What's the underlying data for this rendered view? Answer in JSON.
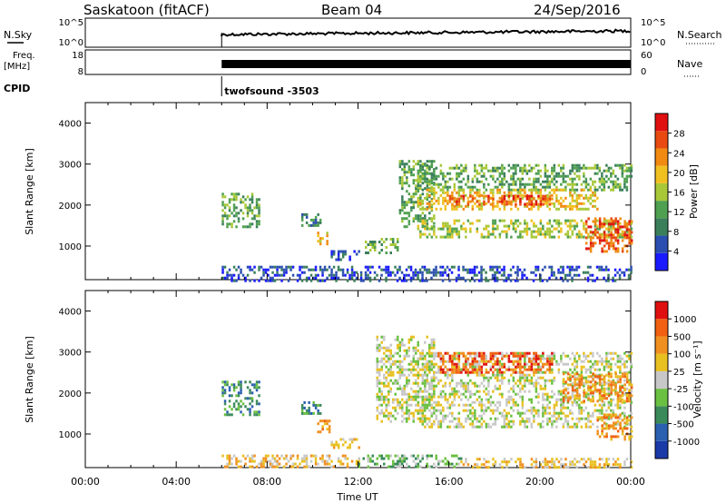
{
  "header": {
    "station": "Saskatoon (fitACF)",
    "beam": "Beam 04",
    "date": "24/Sep/2016"
  },
  "top_panels": {
    "nsky_label": "N.Sky",
    "nsky_ticks": [
      "10^5",
      "10^0"
    ],
    "nsearch_label": "N.Search",
    "nsearch_ticks": [
      "10^5",
      "10^0"
    ],
    "freq_label_1": "Freq.",
    "freq_label_2": "[MHz]",
    "freq_ticks": [
      "18",
      "8"
    ],
    "nave_label": "Nave",
    "nave_ticks": [
      "60",
      "0"
    ],
    "cpid_label": "CPID",
    "cpid_value": "twofsound -3503",
    "data_start_hour": 6
  },
  "colors": {
    "power_scale": [
      "#1a1aff",
      "#2b4fb0",
      "#3a7f5a",
      "#4fa050",
      "#a8c838",
      "#f0c020",
      "#f08a10",
      "#e84a10",
      "#e01010"
    ],
    "velocity_scale": [
      "#1a3aa8",
      "#2b5fb0",
      "#3a8a5a",
      "#6ac040",
      "#c8c8c8",
      "#e8c020",
      "#f09020",
      "#f06010",
      "#e01010"
    ]
  },
  "chart_data": [
    {
      "type": "heatmap",
      "name": "power",
      "ylabel": "Slant Range [km]",
      "colorbar_label": "Power [dB]",
      "colorbar_ticks": [
        "28",
        "24",
        "20",
        "16",
        "12",
        "8",
        "4"
      ],
      "ylim": [
        180,
        4500
      ],
      "yticks": [
        "4000",
        "3000",
        "2000",
        "1000"
      ],
      "xlim_hours": [
        0,
        24
      ],
      "regions": [
        {
          "t0": 6.0,
          "t1": 7.6,
          "r0": 1500,
          "r1": 2300,
          "level": 3
        },
        {
          "t0": 9.5,
          "t1": 10.3,
          "r0": 1500,
          "r1": 1800,
          "level": 2
        },
        {
          "t0": 10.2,
          "t1": 10.7,
          "r0": 1050,
          "r1": 1350,
          "level": 5
        },
        {
          "t0": 10.8,
          "t1": 12.0,
          "r0": 700,
          "r1": 900,
          "level": 1
        },
        {
          "t0": 12.3,
          "t1": 13.7,
          "r0": 850,
          "r1": 1200,
          "level": 3
        },
        {
          "t0": 13.8,
          "t1": 15.3,
          "r0": 1500,
          "r1": 3100,
          "level": 3
        },
        {
          "t0": 14.6,
          "t1": 24.0,
          "r0": 2400,
          "r1": 3000,
          "level": 3
        },
        {
          "t0": 14.6,
          "t1": 22.5,
          "r0": 1900,
          "r1": 2400,
          "level": 5
        },
        {
          "t0": 16.0,
          "t1": 20.5,
          "r0": 2000,
          "r1": 2250,
          "level": 7
        },
        {
          "t0": 14.6,
          "t1": 24.0,
          "r0": 1200,
          "r1": 1650,
          "level": 4
        },
        {
          "t0": 22.0,
          "t1": 24.0,
          "r0": 900,
          "r1": 1700,
          "level": 7
        },
        {
          "t0": 6.0,
          "t1": 24.0,
          "r0": 180,
          "r1": 520,
          "level": 1
        }
      ]
    },
    {
      "type": "heatmap",
      "name": "velocity",
      "ylabel": "Slant Range [km]",
      "colorbar_label": "Velocity [m s⁻¹]",
      "colorbar_ticks": [
        "1000",
        "500",
        "100",
        "25",
        "-25",
        "-100",
        "-500",
        "-1000"
      ],
      "ylim": [
        180,
        4500
      ],
      "yticks": [
        "4000",
        "3000",
        "2000",
        "1000"
      ],
      "xlim_hours": [
        0,
        24
      ],
      "xlabel": "Time UT",
      "xticks": [
        "00:00",
        "04:00",
        "08:00",
        "12:00",
        "16:00",
        "20:00",
        "00:00"
      ],
      "regions": [
        {
          "t0": 6.0,
          "t1": 7.6,
          "r0": 1500,
          "r1": 2300,
          "level": 2
        },
        {
          "t0": 9.5,
          "t1": 10.3,
          "r0": 1500,
          "r1": 1800,
          "level": 2
        },
        {
          "t0": 10.2,
          "t1": 10.7,
          "r0": 1050,
          "r1": 1350,
          "level": 6
        },
        {
          "t0": 10.8,
          "t1": 12.0,
          "r0": 700,
          "r1": 900,
          "level": 5
        },
        {
          "t0": 12.8,
          "t1": 15.3,
          "r0": 1300,
          "r1": 3400,
          "level": 4
        },
        {
          "t0": 14.6,
          "t1": 24.0,
          "r0": 1200,
          "r1": 3000,
          "level": 4
        },
        {
          "t0": 15.5,
          "t1": 20.5,
          "r0": 2500,
          "r1": 3000,
          "level": 7
        },
        {
          "t0": 21.0,
          "t1": 24.0,
          "r0": 1800,
          "r1": 2500,
          "level": 6
        },
        {
          "t0": 22.5,
          "t1": 24.0,
          "r0": 900,
          "r1": 1500,
          "level": 6
        },
        {
          "t0": 6.0,
          "t1": 12.0,
          "r0": 180,
          "r1": 500,
          "level": 5
        },
        {
          "t0": 12.0,
          "t1": 16.5,
          "r0": 180,
          "r1": 500,
          "level": 3
        },
        {
          "t0": 16.5,
          "t1": 24.0,
          "r0": 180,
          "r1": 420,
          "level": 5
        }
      ]
    }
  ]
}
